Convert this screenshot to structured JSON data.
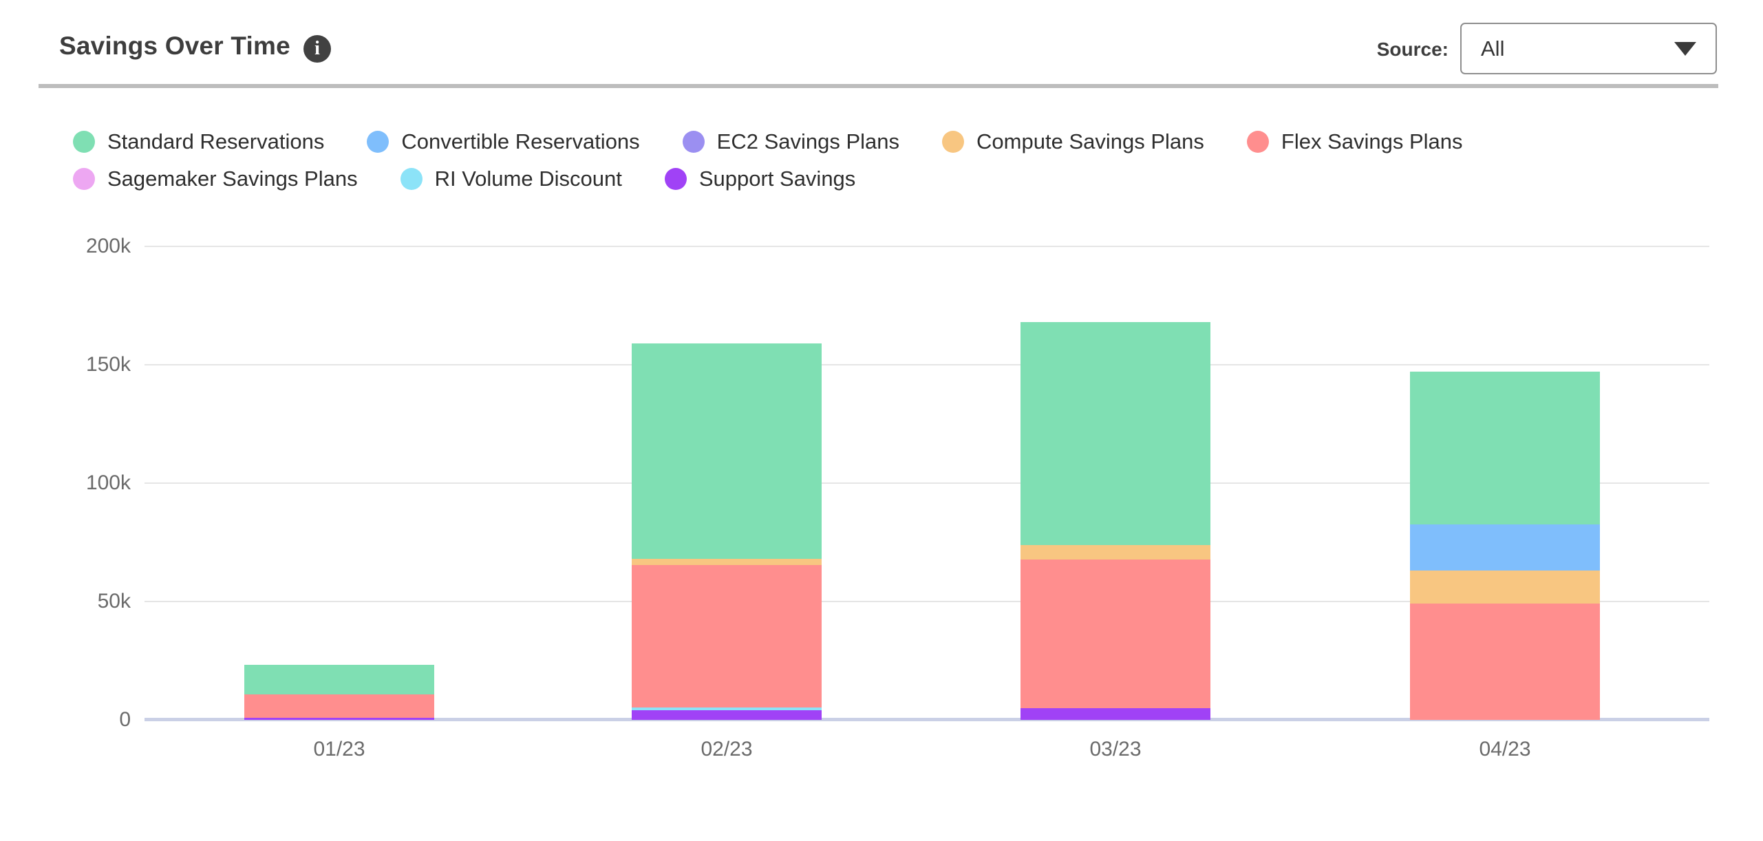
{
  "header": {
    "title": "Savings Over Time",
    "source_label": "Source:",
    "source_value": "All"
  },
  "colors": {
    "divider": "#bdbdbd",
    "gridline": "#e5e5e5",
    "axis_baseline": "#cad0e6",
    "tick_text": "#6a6a6a",
    "title_text": "#3d3d3d"
  },
  "chart_data": {
    "type": "bar",
    "stacked": true,
    "title": "Savings Over Time",
    "xlabel": "",
    "ylabel": "",
    "categories": [
      "01/23",
      "02/23",
      "03/23",
      "04/23"
    ],
    "series": [
      {
        "name": "Standard Reservations",
        "color": "#7fdfb3",
        "values": [
          12400,
          91000,
          94000,
          64700
        ]
      },
      {
        "name": "Convertible Reservations",
        "color": "#7fbefc",
        "values": [
          0,
          0,
          0,
          19500
        ]
      },
      {
        "name": "EC2 Savings Plans",
        "color": "#9b8ff1",
        "values": [
          0,
          0,
          0,
          0
        ]
      },
      {
        "name": "Compute Savings Plans",
        "color": "#f8c681",
        "values": [
          0,
          2400,
          6300,
          14000
        ]
      },
      {
        "name": "Flex Savings Plans",
        "color": "#ff8e8e",
        "values": [
          10000,
          60300,
          62700,
          49000
        ]
      },
      {
        "name": "Sagemaker Savings Plans",
        "color": "#eda7f2",
        "values": [
          0,
          0,
          0,
          0
        ]
      },
      {
        "name": "RI Volume Discount",
        "color": "#8ce3f8",
        "values": [
          0,
          1000,
          0,
          0
        ]
      },
      {
        "name": "Support Savings",
        "color": "#a042f6",
        "values": [
          900,
          4200,
          4900,
          0
        ]
      }
    ],
    "stack_order": "bottom-to-top is reverse of legend order",
    "ylim": [
      0,
      200000
    ],
    "yticks": [
      "200k",
      "150k",
      "100k",
      "50k",
      "0"
    ],
    "ytick_values": [
      200000,
      150000,
      100000,
      50000,
      0
    ],
    "legend_position": "top",
    "grid": true
  }
}
